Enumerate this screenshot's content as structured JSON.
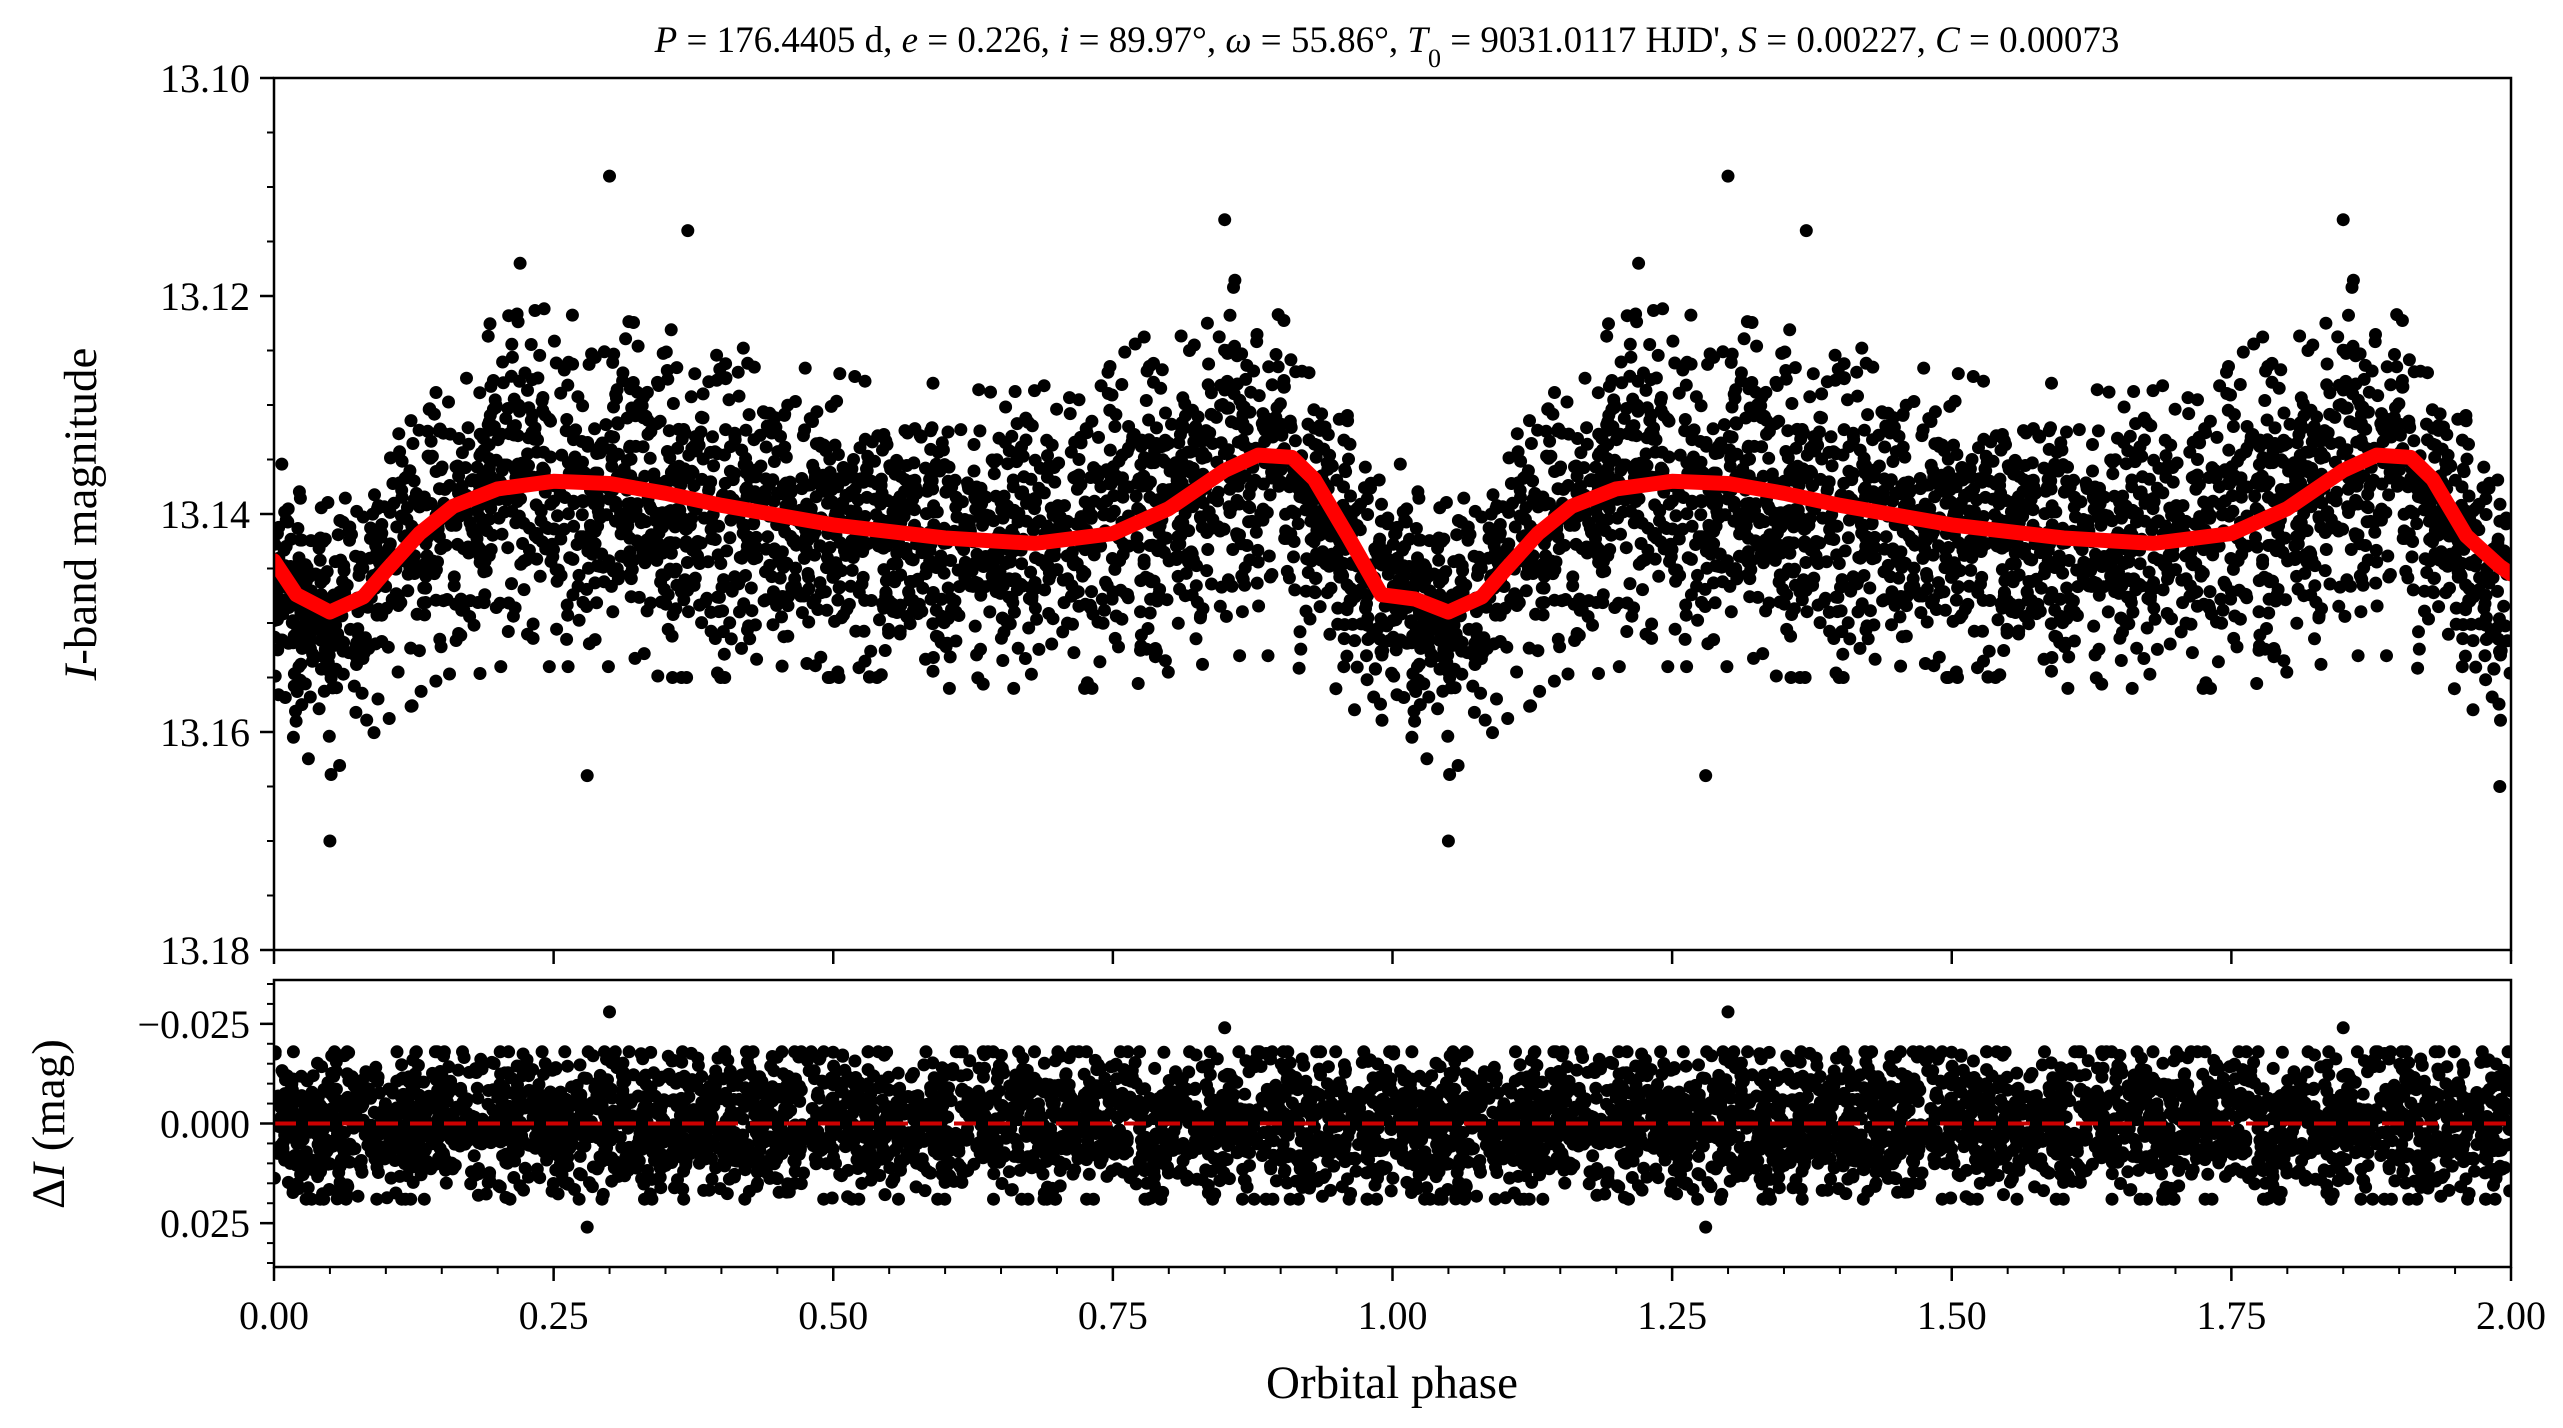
{
  "chart_data": [
    {
      "type": "scatter",
      "panel": "top",
      "title": "P = 176.4405 d, e = 0.226, i = 89.97°, ω = 55.86°, T₀ = 9031.0117 HJD', S = 0.00227, C = 0.00073",
      "title_parts": {
        "P_sym": "P",
        "P_val": " = 176.4405 d, ",
        "e_sym": "e",
        "e_val": " = 0.226, ",
        "i_sym": "i",
        "i_val": " = 89.97°, ",
        "omega_sym": "ω",
        "omega_val": " = 55.86°, ",
        "T_sym": "T",
        "T_sub": "0",
        "T_val": " = 9031.0117 HJD', ",
        "S_sym": "S",
        "S_val": " = 0.00227, ",
        "C_sym": "C",
        "C_val": " = 0.00073"
      },
      "xlabel": "",
      "ylabel": "I-band magnitude",
      "ylabel_parts": {
        "italic": "I",
        "rest": "-band magnitude"
      },
      "xlim": [
        0.0,
        2.0
      ],
      "ylim": [
        13.18,
        13.1
      ],
      "y_inverted": true,
      "ytick_values": [
        13.1,
        13.12,
        13.14,
        13.16,
        13.18
      ],
      "ytick_labels": [
        "13.10",
        "13.12",
        "13.14",
        "13.16",
        "13.18"
      ],
      "xtick_values": [
        0.0,
        0.25,
        0.5,
        0.75,
        1.0,
        1.25,
        1.5,
        1.75,
        2.0
      ],
      "series": [
        {
          "kind": "points",
          "color": "#000000",
          "envelope_phase": [
            0.0,
            0.05,
            0.1,
            0.15,
            0.2,
            0.25,
            0.3,
            0.35,
            0.4,
            0.45,
            0.5,
            0.55,
            0.6,
            0.65,
            0.7,
            0.75,
            0.8,
            0.85,
            0.9,
            0.95,
            1.0
          ],
          "envelope_upper": [
            13.135,
            13.138,
            13.132,
            13.126,
            13.122,
            13.121,
            13.122,
            13.123,
            13.124,
            13.126,
            13.127,
            13.128,
            13.128,
            13.129,
            13.128,
            13.126,
            13.122,
            13.118,
            13.121,
            13.13,
            13.135
          ],
          "envelope_lower": [
            13.16,
            13.164,
            13.159,
            13.156,
            13.154,
            13.154,
            13.154,
            13.155,
            13.155,
            13.155,
            13.155,
            13.155,
            13.156,
            13.156,
            13.156,
            13.156,
            13.155,
            13.153,
            13.153,
            13.157,
            13.16
          ],
          "outliers": [
            {
              "x": 0.3,
              "y": 13.109
            },
            {
              "x": 0.22,
              "y": 13.117
            },
            {
              "x": 0.85,
              "y": 13.113
            },
            {
              "x": 0.37,
              "y": 13.114
            },
            {
              "x": 0.05,
              "y": 13.17
            },
            {
              "x": 0.28,
              "y": 13.164
            },
            {
              "x": 1.3,
              "y": 13.109
            },
            {
              "x": 1.22,
              "y": 13.117
            },
            {
              "x": 1.85,
              "y": 13.113
            },
            {
              "x": 1.37,
              "y": 13.114
            },
            {
              "x": 1.05,
              "y": 13.17
            },
            {
              "x": 1.28,
              "y": 13.164
            },
            {
              "x": 1.99,
              "y": 13.165
            }
          ]
        },
        {
          "kind": "model",
          "color": "#ff0000",
          "x": [
            0.0,
            0.02,
            0.05,
            0.08,
            0.1,
            0.13,
            0.16,
            0.2,
            0.25,
            0.3,
            0.35,
            0.4,
            0.5,
            0.6,
            0.68,
            0.75,
            0.8,
            0.85,
            0.88,
            0.91,
            0.93,
            0.96,
            0.99,
            1.02,
            1.05,
            1.08,
            1.1,
            1.13,
            1.16,
            1.2,
            1.25,
            1.3,
            1.35,
            1.4,
            1.5,
            1.6,
            1.68,
            1.75,
            1.8,
            1.85,
            1.88,
            1.91,
            1.93,
            1.96,
            1.99,
            2.0
          ],
          "y": [
            13.1443,
            13.1474,
            13.149,
            13.1476,
            13.1452,
            13.1418,
            13.1393,
            13.1377,
            13.137,
            13.1372,
            13.1381,
            13.1392,
            13.141,
            13.1422,
            13.1427,
            13.1418,
            13.1395,
            13.136,
            13.1346,
            13.1348,
            13.1368,
            13.142,
            13.1474,
            13.1478,
            13.149,
            13.1476,
            13.1452,
            13.1418,
            13.1393,
            13.1377,
            13.137,
            13.1372,
            13.1381,
            13.1392,
            13.141,
            13.1422,
            13.1427,
            13.1418,
            13.1395,
            13.136,
            13.1346,
            13.1348,
            13.1368,
            13.142,
            13.1448,
            13.1455
          ]
        }
      ]
    },
    {
      "type": "scatter",
      "panel": "bottom",
      "title": "",
      "xlabel": "Orbital phase",
      "ylabel": "ΔI (mag)",
      "ylabel_parts": {
        "delta": "Δ",
        "italic": "I",
        "rest": " (mag)"
      },
      "xlim": [
        0.0,
        2.0
      ],
      "ylim": [
        0.036,
        -0.036
      ],
      "y_inverted": true,
      "ytick_values": [
        -0.025,
        0.0,
        0.025
      ],
      "ytick_labels": [
        "−0.025",
        "0.000",
        "0.025"
      ],
      "xtick_values": [
        0.0,
        0.25,
        0.5,
        0.75,
        1.0,
        1.25,
        1.5,
        1.75,
        2.0
      ],
      "xtick_labels": [
        "0.00",
        "0.25",
        "0.50",
        "0.75",
        "1.00",
        "1.25",
        "1.50",
        "1.75",
        "2.00"
      ],
      "series": [
        {
          "kind": "points",
          "color": "#000000",
          "residual_upper": -0.018,
          "residual_lower": 0.019,
          "outliers": [
            {
              "x": 0.3,
              "y": -0.028
            },
            {
              "x": 1.3,
              "y": -0.028
            },
            {
              "x": 0.28,
              "y": 0.026
            },
            {
              "x": 1.28,
              "y": 0.026
            },
            {
              "x": 0.85,
              "y": -0.024
            },
            {
              "x": 1.85,
              "y": -0.024
            }
          ]
        },
        {
          "kind": "zero-line",
          "style": "dashed",
          "color": "#cc0000",
          "y": 0.0
        }
      ]
    }
  ]
}
